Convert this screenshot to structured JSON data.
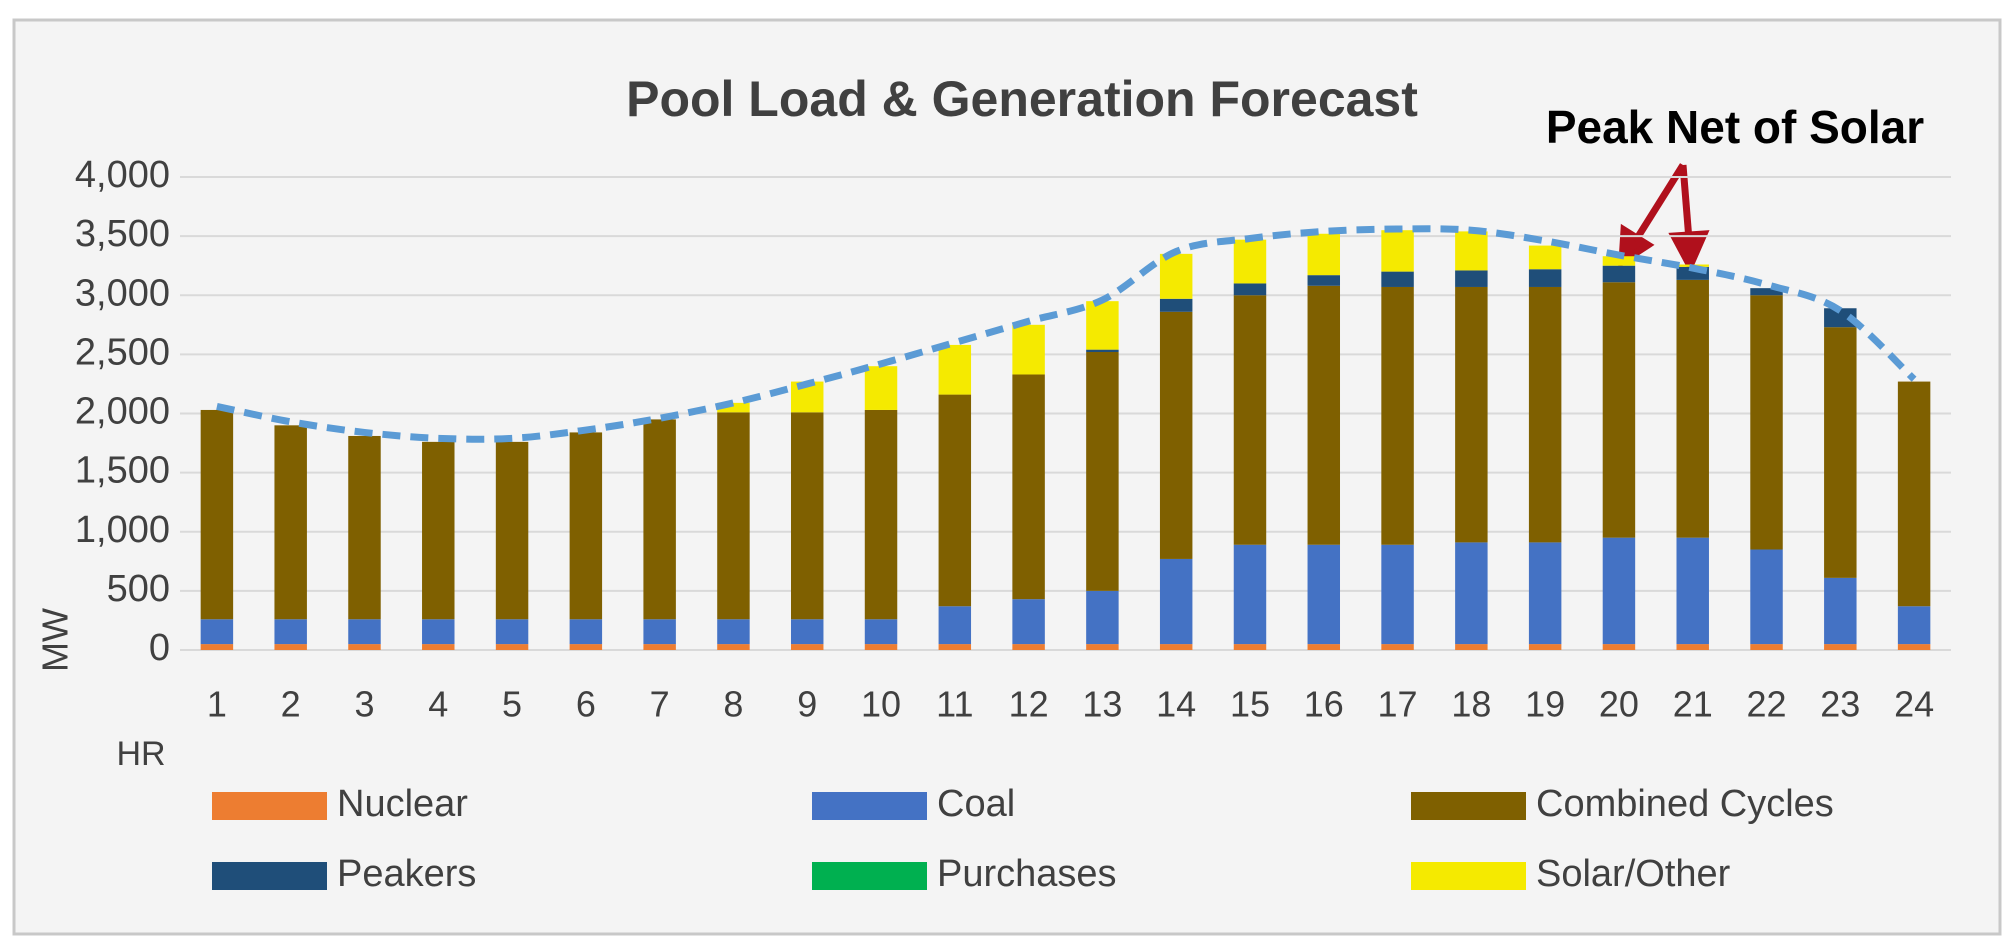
{
  "chart_data": {
    "type": "stacked_bar",
    "title": "Pool Load & Generation Forecast",
    "annotation": "Peak Net of Solar",
    "x_label": "HR",
    "y_label": "MW",
    "categories": [
      "1",
      "2",
      "3",
      "4",
      "5",
      "6",
      "7",
      "8",
      "9",
      "10",
      "11",
      "12",
      "13",
      "14",
      "15",
      "16",
      "17",
      "18",
      "19",
      "20",
      "21",
      "22",
      "23",
      "24"
    ],
    "series": [
      {
        "name": "Nuclear",
        "color": "#ed7d31",
        "values": [
          50,
          50,
          50,
          50,
          50,
          50,
          50,
          50,
          50,
          50,
          50,
          50,
          50,
          50,
          50,
          50,
          50,
          50,
          50,
          50,
          50,
          50,
          50,
          50
        ]
      },
      {
        "name": "Coal",
        "color": "#4472c4",
        "values": [
          210,
          210,
          210,
          210,
          210,
          210,
          210,
          210,
          210,
          210,
          320,
          380,
          450,
          720,
          840,
          840,
          840,
          860,
          860,
          900,
          900,
          800,
          560,
          320
        ]
      },
      {
        "name": "Combined Cycles",
        "color": "#7f6000",
        "values": [
          1770,
          1640,
          1550,
          1500,
          1500,
          1580,
          1690,
          1750,
          1750,
          1770,
          1790,
          1900,
          2020,
          2090,
          2110,
          2190,
          2180,
          2160,
          2160,
          2160,
          2180,
          2150,
          2120,
          1900
        ]
      },
      {
        "name": "Peakers",
        "color": "#1f4e79",
        "values": [
          0,
          0,
          0,
          0,
          0,
          0,
          0,
          0,
          0,
          0,
          0,
          0,
          20,
          110,
          100,
          90,
          130,
          140,
          150,
          140,
          110,
          60,
          160,
          0
        ]
      },
      {
        "name": "Purchases",
        "color": "#00b050",
        "values": [
          0,
          0,
          0,
          0,
          0,
          0,
          0,
          0,
          0,
          0,
          0,
          0,
          0,
          0,
          0,
          0,
          0,
          0,
          0,
          0,
          0,
          0,
          0,
          0
        ]
      },
      {
        "name": "Solar/Other",
        "color": "#f5ea00",
        "values": [
          0,
          0,
          0,
          0,
          0,
          0,
          0,
          80,
          260,
          370,
          420,
          420,
          410,
          380,
          370,
          350,
          350,
          330,
          200,
          80,
          20,
          0,
          0,
          0
        ]
      },
      {
        "type": "line",
        "color": "#5b9bd5",
        "dashed": true,
        "values": [
          2060,
          1930,
          1840,
          1790,
          1790,
          1860,
          1960,
          2090,
          2250,
          2420,
          2600,
          2780,
          2960,
          3370,
          3480,
          3540,
          3560,
          3550,
          3460,
          3340,
          3230,
          3090,
          2870,
          2290
        ]
      }
    ],
    "ylim": [
      0,
      4000
    ],
    "yticks": [
      0,
      500,
      {
        "value": 1000,
        "label": "1,000"
      },
      {
        "value": 1500,
        "label": "1,500"
      },
      {
        "value": 2000,
        "label": "2,000"
      },
      {
        "value": 2500,
        "label": "2,500"
      },
      {
        "value": 3000,
        "label": "3,000"
      },
      {
        "value": 3500,
        "label": "3,500"
      },
      {
        "value": 4000,
        "label": "4,000"
      }
    ],
    "grid": true,
    "legend": "bottom"
  }
}
